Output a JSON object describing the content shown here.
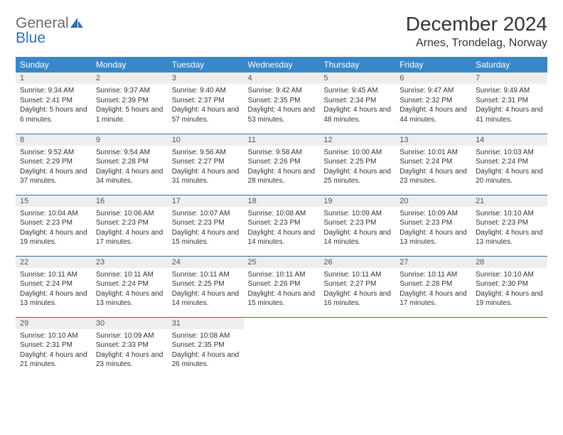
{
  "brand": {
    "part1": "General",
    "part2": "Blue"
  },
  "title": "December 2024",
  "location": "Arnes, Trondelag, Norway",
  "colors": {
    "header_bg": "#3a87c8",
    "header_text": "#ffffff",
    "daynum_bg": "#eeeeee",
    "row_border": "#3a6fa0",
    "brand_blue": "#2f6fb0",
    "brand_gray": "#6a6a6a"
  },
  "weekdays": [
    "Sunday",
    "Monday",
    "Tuesday",
    "Wednesday",
    "Thursday",
    "Friday",
    "Saturday"
  ],
  "days": [
    {
      "n": "1",
      "sunrise": "Sunrise: 9:34 AM",
      "sunset": "Sunset: 2:41 PM",
      "daylight": "Daylight: 5 hours and 6 minutes."
    },
    {
      "n": "2",
      "sunrise": "Sunrise: 9:37 AM",
      "sunset": "Sunset: 2:39 PM",
      "daylight": "Daylight: 5 hours and 1 minute."
    },
    {
      "n": "3",
      "sunrise": "Sunrise: 9:40 AM",
      "sunset": "Sunset: 2:37 PM",
      "daylight": "Daylight: 4 hours and 57 minutes."
    },
    {
      "n": "4",
      "sunrise": "Sunrise: 9:42 AM",
      "sunset": "Sunset: 2:35 PM",
      "daylight": "Daylight: 4 hours and 53 minutes."
    },
    {
      "n": "5",
      "sunrise": "Sunrise: 9:45 AM",
      "sunset": "Sunset: 2:34 PM",
      "daylight": "Daylight: 4 hours and 48 minutes."
    },
    {
      "n": "6",
      "sunrise": "Sunrise: 9:47 AM",
      "sunset": "Sunset: 2:32 PM",
      "daylight": "Daylight: 4 hours and 44 minutes."
    },
    {
      "n": "7",
      "sunrise": "Sunrise: 9:49 AM",
      "sunset": "Sunset: 2:31 PM",
      "daylight": "Daylight: 4 hours and 41 minutes."
    },
    {
      "n": "8",
      "sunrise": "Sunrise: 9:52 AM",
      "sunset": "Sunset: 2:29 PM",
      "daylight": "Daylight: 4 hours and 37 minutes."
    },
    {
      "n": "9",
      "sunrise": "Sunrise: 9:54 AM",
      "sunset": "Sunset: 2:28 PM",
      "daylight": "Daylight: 4 hours and 34 minutes."
    },
    {
      "n": "10",
      "sunrise": "Sunrise: 9:56 AM",
      "sunset": "Sunset: 2:27 PM",
      "daylight": "Daylight: 4 hours and 31 minutes."
    },
    {
      "n": "11",
      "sunrise": "Sunrise: 9:58 AM",
      "sunset": "Sunset: 2:26 PM",
      "daylight": "Daylight: 4 hours and 28 minutes."
    },
    {
      "n": "12",
      "sunrise": "Sunrise: 10:00 AM",
      "sunset": "Sunset: 2:25 PM",
      "daylight": "Daylight: 4 hours and 25 minutes."
    },
    {
      "n": "13",
      "sunrise": "Sunrise: 10:01 AM",
      "sunset": "Sunset: 2:24 PM",
      "daylight": "Daylight: 4 hours and 23 minutes."
    },
    {
      "n": "14",
      "sunrise": "Sunrise: 10:03 AM",
      "sunset": "Sunset: 2:24 PM",
      "daylight": "Daylight: 4 hours and 20 minutes."
    },
    {
      "n": "15",
      "sunrise": "Sunrise: 10:04 AM",
      "sunset": "Sunset: 2:23 PM",
      "daylight": "Daylight: 4 hours and 19 minutes."
    },
    {
      "n": "16",
      "sunrise": "Sunrise: 10:06 AM",
      "sunset": "Sunset: 2:23 PM",
      "daylight": "Daylight: 4 hours and 17 minutes."
    },
    {
      "n": "17",
      "sunrise": "Sunrise: 10:07 AM",
      "sunset": "Sunset: 2:23 PM",
      "daylight": "Daylight: 4 hours and 15 minutes."
    },
    {
      "n": "18",
      "sunrise": "Sunrise: 10:08 AM",
      "sunset": "Sunset: 2:23 PM",
      "daylight": "Daylight: 4 hours and 14 minutes."
    },
    {
      "n": "19",
      "sunrise": "Sunrise: 10:09 AM",
      "sunset": "Sunset: 2:23 PM",
      "daylight": "Daylight: 4 hours and 14 minutes."
    },
    {
      "n": "20",
      "sunrise": "Sunrise: 10:09 AM",
      "sunset": "Sunset: 2:23 PM",
      "daylight": "Daylight: 4 hours and 13 minutes."
    },
    {
      "n": "21",
      "sunrise": "Sunrise: 10:10 AM",
      "sunset": "Sunset: 2:23 PM",
      "daylight": "Daylight: 4 hours and 13 minutes."
    },
    {
      "n": "22",
      "sunrise": "Sunrise: 10:11 AM",
      "sunset": "Sunset: 2:24 PM",
      "daylight": "Daylight: 4 hours and 13 minutes."
    },
    {
      "n": "23",
      "sunrise": "Sunrise: 10:11 AM",
      "sunset": "Sunset: 2:24 PM",
      "daylight": "Daylight: 4 hours and 13 minutes."
    },
    {
      "n": "24",
      "sunrise": "Sunrise: 10:11 AM",
      "sunset": "Sunset: 2:25 PM",
      "daylight": "Daylight: 4 hours and 14 minutes."
    },
    {
      "n": "25",
      "sunrise": "Sunrise: 10:11 AM",
      "sunset": "Sunset: 2:26 PM",
      "daylight": "Daylight: 4 hours and 15 minutes."
    },
    {
      "n": "26",
      "sunrise": "Sunrise: 10:11 AM",
      "sunset": "Sunset: 2:27 PM",
      "daylight": "Daylight: 4 hours and 16 minutes."
    },
    {
      "n": "27",
      "sunrise": "Sunrise: 10:11 AM",
      "sunset": "Sunset: 2:28 PM",
      "daylight": "Daylight: 4 hours and 17 minutes."
    },
    {
      "n": "28",
      "sunrise": "Sunrise: 10:10 AM",
      "sunset": "Sunset: 2:30 PM",
      "daylight": "Daylight: 4 hours and 19 minutes."
    },
    {
      "n": "29",
      "sunrise": "Sunrise: 10:10 AM",
      "sunset": "Sunset: 2:31 PM",
      "daylight": "Daylight: 4 hours and 21 minutes."
    },
    {
      "n": "30",
      "sunrise": "Sunrise: 10:09 AM",
      "sunset": "Sunset: 2:33 PM",
      "daylight": "Daylight: 4 hours and 23 minutes."
    },
    {
      "n": "31",
      "sunrise": "Sunrise: 10:08 AM",
      "sunset": "Sunset: 2:35 PM",
      "daylight": "Daylight: 4 hours and 26 minutes."
    }
  ]
}
